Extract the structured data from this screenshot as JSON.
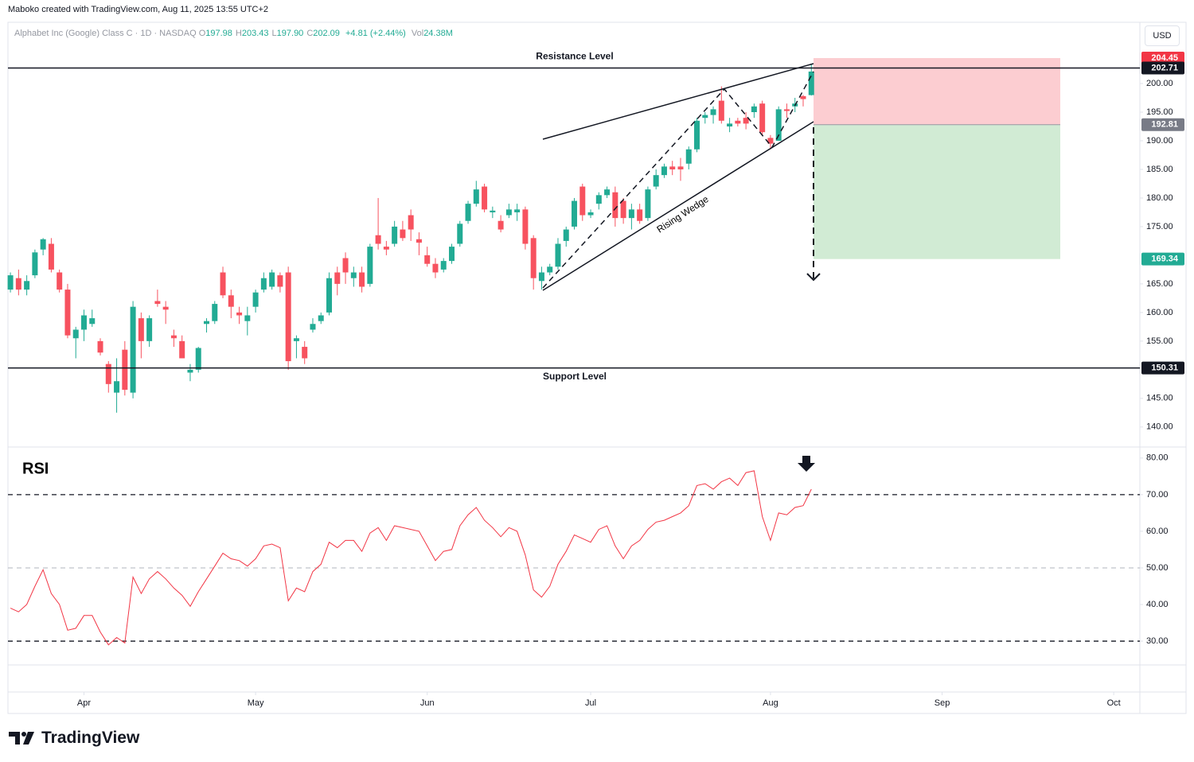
{
  "header": {
    "attribution": "Maboko created with TradingView.com, Aug 11, 2025 13:55 UTC+2",
    "symbol": "Alphabet Inc (Google) Class C · 1D · NASDAQ",
    "ohlc": [
      {
        "key": "O",
        "value": "197.98"
      },
      {
        "key": "H",
        "value": "203.43"
      },
      {
        "key": "L",
        "value": "197.90"
      },
      {
        "key": "C",
        "value": "202.09"
      }
    ],
    "change": "+4.81 (+2.44%)",
    "volume": {
      "key": "Vol",
      "value": "24.38M"
    },
    "currency": "USD",
    "brand": "TradingView"
  },
  "chart_data": [
    {
      "type": "candlestick",
      "open": [
        164.0,
        166.0,
        164.0,
        166.5,
        171.0,
        172.0,
        167.0,
        164.0,
        155.5,
        157.0,
        158.0,
        155.0,
        151.0,
        146.0,
        153.5,
        146.0,
        159.0,
        155.0,
        162.0,
        161.0,
        156.0,
        155.0,
        149.5,
        150.0,
        158.0,
        158.5,
        167.0,
        163.0,
        160.0,
        158.5,
        161.0,
        164.0,
        164.5,
        166.5,
        167.0,
        155.0,
        154.0,
        157.0,
        158.5,
        160.0,
        167.0,
        169.5,
        166.0,
        167.0,
        165.0,
        173.5,
        171.5,
        172.0,
        174.5,
        177.0,
        172.8,
        170.0,
        168.5,
        167.5,
        169.0,
        172.0,
        176.0,
        179.0,
        182.0,
        177.5,
        176.0,
        177.0,
        177.5,
        178.0,
        173.0,
        165.5,
        167.0,
        168.0,
        172.5,
        175.0,
        182.0,
        177.0,
        179.0,
        180.5,
        181.0,
        179.5,
        176.5,
        178.0,
        176.5,
        182.0,
        184.0,
        185.5,
        185.5,
        186.0,
        188.5,
        194.0,
        194.5,
        197.0,
        192.5,
        193.5,
        194.0,
        195.0,
        196.5,
        190.5,
        190.0,
        195.5,
        196.0,
        197.8,
        197.98
      ],
      "high": [
        167.0,
        167.5,
        166.5,
        171.0,
        173.0,
        173.0,
        167.5,
        165.0,
        157.5,
        160.5,
        160.5,
        155.5,
        151.5,
        152.0,
        155.0,
        162.0,
        160.0,
        159.5,
        164.0,
        162.0,
        157.0,
        156.0,
        151.0,
        154.0,
        159.0,
        162.0,
        168.0,
        164.0,
        161.0,
        161.0,
        164.0,
        167.0,
        167.5,
        167.0,
        168.0,
        156.0,
        155.0,
        159.0,
        160.0,
        167.0,
        168.0,
        170.5,
        168.0,
        168.0,
        172.0,
        180.0,
        172.5,
        176.0,
        176.0,
        178.0,
        174.0,
        171.5,
        169.5,
        169.5,
        172.0,
        176.0,
        179.5,
        183.0,
        182.5,
        178.5,
        177.0,
        179.0,
        179.0,
        178.5,
        173.5,
        168.0,
        168.5,
        173.0,
        175.0,
        180.0,
        182.5,
        178.0,
        181.0,
        182.0,
        182.0,
        180.0,
        179.0,
        179.0,
        182.0,
        185.0,
        186.0,
        186.5,
        187.0,
        189.0,
        194.0,
        195.0,
        196.0,
        199.5,
        194.0,
        194.0,
        195.0,
        196.5,
        197.0,
        191.0,
        196.0,
        196.5,
        197.5,
        198.0,
        203.43
      ],
      "low": [
        163.5,
        163.0,
        163.0,
        166.0,
        170.0,
        167.0,
        163.5,
        155.5,
        152.0,
        155.0,
        157.5,
        152.5,
        146.0,
        142.5,
        145.5,
        145.0,
        152.0,
        154.0,
        161.0,
        158.0,
        154.0,
        152.0,
        148.0,
        149.5,
        156.5,
        158.0,
        162.5,
        159.0,
        158.0,
        156.0,
        160.0,
        163.5,
        164.0,
        163.5,
        150.0,
        152.0,
        151.0,
        156.5,
        158.0,
        159.5,
        163.0,
        165.0,
        164.5,
        163.5,
        164.5,
        171.0,
        170.0,
        171.5,
        172.5,
        172.5,
        170.0,
        168.0,
        166.0,
        167.0,
        168.5,
        171.5,
        175.5,
        178.5,
        177.5,
        176.5,
        174.0,
        176.5,
        176.0,
        171.0,
        164.0,
        164.0,
        166.5,
        167.5,
        171.5,
        174.5,
        176.0,
        176.5,
        178.0,
        180.0,
        175.0,
        175.5,
        174.5,
        175.5,
        176.0,
        181.5,
        183.5,
        184.0,
        183.0,
        185.0,
        188.0,
        193.0,
        193.0,
        193.0,
        191.5,
        192.5,
        192.0,
        194.0,
        191.0,
        188.5,
        190.0,
        194.0,
        195.0,
        196.0,
        197.9
      ],
      "close": [
        166.5,
        164.0,
        165.5,
        170.5,
        172.8,
        167.5,
        164.0,
        156.0,
        157.0,
        159.5,
        159.0,
        153.0,
        147.5,
        148.0,
        146.5,
        161.0,
        155.0,
        159.0,
        161.5,
        160.5,
        155.5,
        152.0,
        150.0,
        153.8,
        158.5,
        161.5,
        163.0,
        161.0,
        159.5,
        159.5,
        163.5,
        166.0,
        167.0,
        164.5,
        151.5,
        155.5,
        152.0,
        158.0,
        159.5,
        166.0,
        165.0,
        167.0,
        167.0,
        164.5,
        171.5,
        172.0,
        171.0,
        175.0,
        173.0,
        174.5,
        172.2,
        168.5,
        167.0,
        169.0,
        171.5,
        175.5,
        179.0,
        181.5,
        178.0,
        177.8,
        174.5,
        178.0,
        178.0,
        172.0,
        166.0,
        167.0,
        168.0,
        172.0,
        174.5,
        179.5,
        177.0,
        177.5,
        180.5,
        181.5,
        176.5,
        176.5,
        178.0,
        176.0,
        181.5,
        184.0,
        185.5,
        185.0,
        185.0,
        188.5,
        193.5,
        194.5,
        195.5,
        193.5,
        193.0,
        193.0,
        193.0,
        196.0,
        191.5,
        189.5,
        195.5,
        195.2,
        196.5,
        197.28,
        202.09
      ],
      "up_color": "#22ab94",
      "down_color": "#f7525f",
      "xlim": [
        -0.3,
        138.2
      ],
      "xticks": [
        {
          "value": 9,
          "label": "Apr"
        },
        {
          "value": 30,
          "label": "May"
        },
        {
          "value": 51,
          "label": "Jun"
        },
        {
          "value": 71,
          "label": "Jul"
        },
        {
          "value": 93,
          "label": "Aug"
        },
        {
          "value": 114,
          "label": "Sep"
        },
        {
          "value": 135,
          "label": "Oct"
        }
      ],
      "ylim": [
        136.5,
        210.7
      ],
      "yticks": [
        {
          "value": 140,
          "label": "140.00"
        },
        {
          "value": 145,
          "label": "145.00"
        },
        {
          "value": 155,
          "label": "155.00"
        },
        {
          "value": 160,
          "label": "160.00"
        },
        {
          "value": 165,
          "label": "165.00"
        },
        {
          "value": 175,
          "label": "175.00"
        },
        {
          "value": 180,
          "label": "180.00"
        },
        {
          "value": 185,
          "label": "185.00"
        },
        {
          "value": 190,
          "label": "190.00"
        },
        {
          "value": 195,
          "label": "195.00"
        },
        {
          "value": 200,
          "label": "200.00"
        }
      ],
      "levels": [
        {
          "name": "Resistance Level",
          "value": 202.71
        },
        {
          "name": "Support Level",
          "value": 150.31
        }
      ],
      "annotation": "Rising Wedge",
      "position": {
        "stop": 204.45,
        "entry": 192.81,
        "target": 169.34
      }
    },
    {
      "type": "line",
      "title": "RSI",
      "color": "#f23645",
      "values": [
        39,
        38,
        40,
        45,
        49.5,
        43,
        40,
        33,
        33.5,
        37,
        37,
        32.5,
        29,
        31,
        29.5,
        47.5,
        43,
        47,
        49,
        47,
        44.5,
        42.5,
        39.5,
        43.5,
        47,
        50.5,
        54,
        52.5,
        52,
        50.5,
        52.5,
        56,
        56.5,
        55.5,
        41,
        44.5,
        43.5,
        49,
        51,
        57,
        55.5,
        57.5,
        57.5,
        54.5,
        59.5,
        61,
        57.5,
        61.5,
        61,
        60.5,
        60,
        56,
        52,
        54.5,
        55,
        61.5,
        64.5,
        66.5,
        63,
        61,
        58.5,
        61,
        60,
        53.5,
        44,
        42,
        45,
        51,
        54.5,
        59,
        58,
        57,
        60.5,
        61.5,
        56,
        52.5,
        56,
        57.5,
        60.5,
        62.5,
        63,
        64,
        65,
        67,
        72.5,
        73,
        71.5,
        73.5,
        74.5,
        72.5,
        76,
        76.5,
        64,
        57.5,
        65,
        64.5,
        66.5,
        67,
        71.5
      ],
      "ylim": [
        23.5,
        83.0
      ],
      "yticks": [
        {
          "value": 30,
          "label": "30.00"
        },
        {
          "value": 40,
          "label": "40.00"
        },
        {
          "value": 50,
          "label": "50.00"
        },
        {
          "value": 60,
          "label": "60.00"
        },
        {
          "value": 70,
          "label": "70.00"
        },
        {
          "value": 80,
          "label": "80.00"
        }
      ],
      "levels": [
        {
          "value": 70,
          "color": "#131722"
        },
        {
          "value": 50,
          "color": "#b2b5be"
        },
        {
          "value": 30,
          "color": "#131722"
        }
      ]
    }
  ]
}
